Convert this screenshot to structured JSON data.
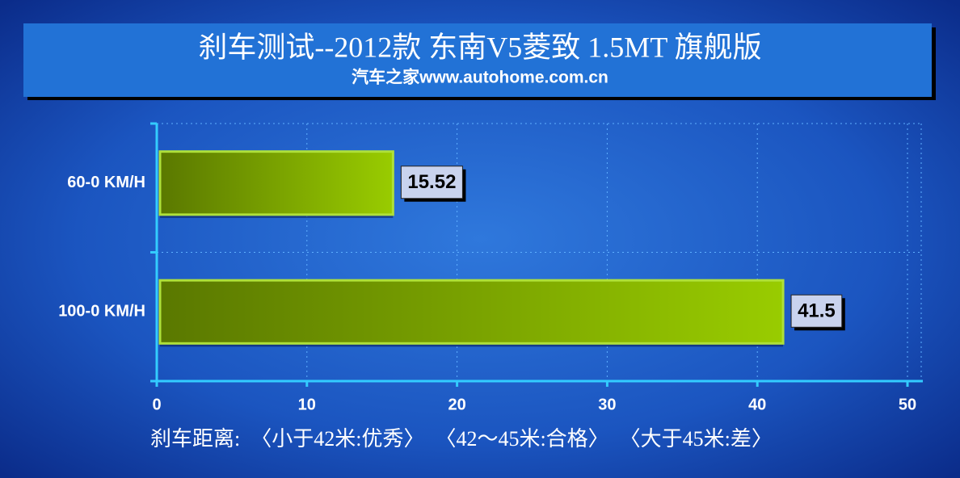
{
  "chart_data": {
    "type": "bar",
    "orientation": "horizontal",
    "title": "刹车测试--2012款 东南V5菱致 1.5MT 旗舰版",
    "subtitle": "汽车之家www.autohome.com.cn",
    "annotation": "刹车距离:  〈小于42米:优秀〉  〈42～45米:合格〉  〈大于45米:差〉",
    "categories": [
      "60-0 KM/H",
      "100-0 KM/H"
    ],
    "values": [
      15.52,
      41.5
    ],
    "color": "#99cc00",
    "xlim": [
      0,
      50
    ],
    "xticks": [
      0,
      10,
      20,
      30,
      40,
      50
    ],
    "grid": true
  }
}
